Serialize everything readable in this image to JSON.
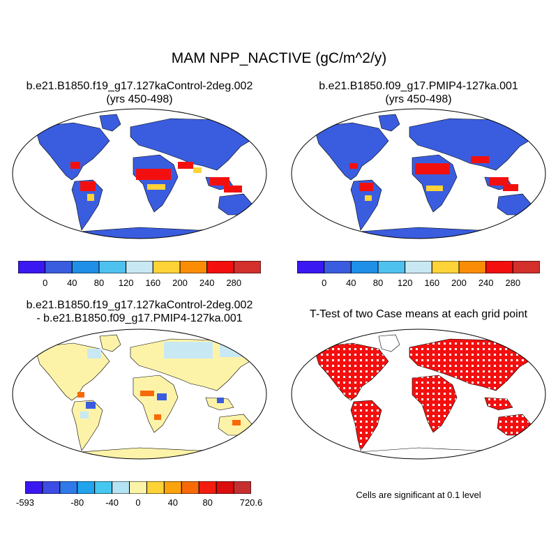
{
  "page": {
    "title": "MAM NPP_NACTIVE (gC/m^2/y)"
  },
  "panels": {
    "control": {
      "title_line1": "b.e21.B1850.f19_g17.127kaControl-2deg.002",
      "title_line2": "(yrs 450-498)"
    },
    "pmip4": {
      "title_line1": "b.e21.B1850.f09_g17.PMIP4-127ka.001",
      "title_line2": "(yrs 450-498)"
    },
    "difference": {
      "title_line1": "b.e21.B1850.f19_g17.127kaControl-2deg.002",
      "title_line2": "- b.e21.B1850.f09_g17.PMIP4-127ka.001"
    },
    "ttest": {
      "title_line1": "T-Test of two Case means at each grid point",
      "note": "Cells are significant at 0.1 level"
    }
  },
  "colorbars": {
    "main": {
      "colors": [
        "#3a18f2",
        "#3a5ddf",
        "#1f8fe8",
        "#4fc1ef",
        "#c8e9f4",
        "#fdd337",
        "#fb8c06",
        "#f40f0f",
        "#d3302b"
      ],
      "labels": [
        "0",
        "40",
        "80",
        "120",
        "160",
        "200",
        "240",
        "280"
      ]
    },
    "diff": {
      "colors": [
        "#3a18f2",
        "#3c4ce4",
        "#2f79e9",
        "#21a3ee",
        "#46c7f0",
        "#b4e3f3",
        "#fdf3a8",
        "#fdd337",
        "#fba30c",
        "#f86a08",
        "#f41c0e",
        "#dc0d0d",
        "#c62f2f"
      ],
      "labels": [
        "-593",
        "-80",
        "-40",
        "0",
        "40",
        "80",
        "720.6"
      ]
    }
  },
  "colors": {
    "ocean": "#ffffff",
    "land_low": "#3a5ddf",
    "land_hot": "#f40f0f",
    "diff_land": "#fdf3a8",
    "diff_cool": "#c8e9f4",
    "sig": "#f40f0f"
  }
}
